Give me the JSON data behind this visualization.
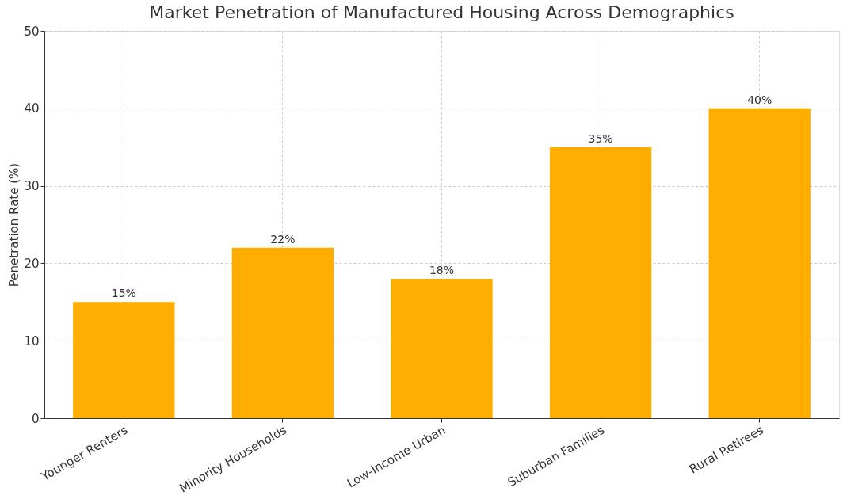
{
  "chart_data": {
    "type": "bar",
    "title": "Market Penetration of Manufactured Housing Across Demographics",
    "ylabel": "Penetration Rate (%)",
    "categories": [
      "Younger Renters",
      "Minority Households",
      "Low-Income Urban",
      "Suburban Families",
      "Rural Retirees"
    ],
    "values": [
      15,
      22,
      18,
      35,
      40
    ],
    "value_labels": [
      "15%",
      "22%",
      "18%",
      "35%",
      "40%"
    ],
    "color": "#ffae00",
    "ylim": [
      0,
      50
    ],
    "yticks": [
      0,
      10,
      20,
      30,
      40,
      50
    ],
    "grid": true
  }
}
